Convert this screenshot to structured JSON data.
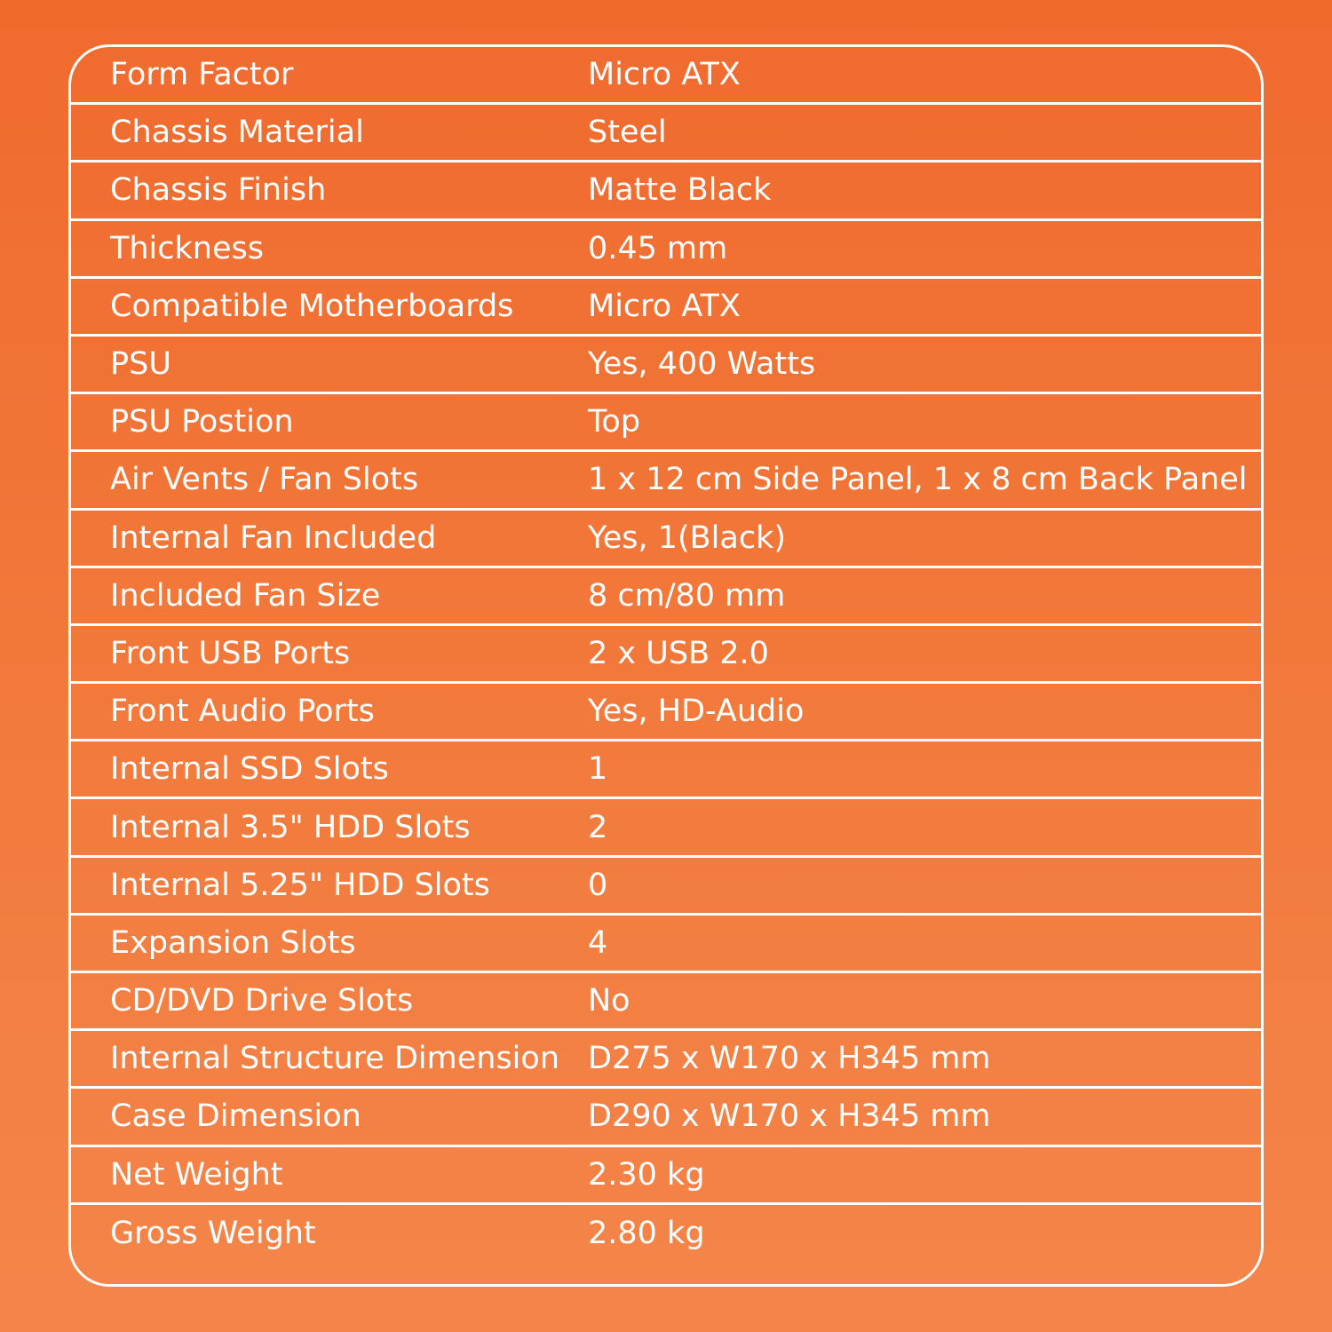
{
  "specs": [
    {
      "label": "Form Factor",
      "value": "Micro ATX"
    },
    {
      "label": "Chassis Material",
      "value": "Steel"
    },
    {
      "label": "Chassis Finish",
      "value": "Matte Black"
    },
    {
      "label": "Thickness",
      "value": "0.45 mm"
    },
    {
      "label": "Compatible Motherboards",
      "value": "Micro ATX"
    },
    {
      "label": "PSU",
      "value": "Yes, 400 Watts"
    },
    {
      "label": "PSU Postion",
      "value": "Top"
    },
    {
      "label": "Air Vents / Fan Slots",
      "value": "1 x 12 cm Side Panel, 1 x 8 cm Back Panel"
    },
    {
      "label": "Internal Fan Included",
      "value": "Yes, 1(Black)"
    },
    {
      "label": "Included Fan Size",
      "value": "8 cm/80 mm"
    },
    {
      "label": "Front USB Ports",
      "value": "2 x USB 2.0"
    },
    {
      "label": "Front Audio Ports",
      "value": "Yes, HD-Audio"
    },
    {
      "label": "Internal SSD Slots",
      "value": "1"
    },
    {
      "label": "Internal 3.5\" HDD Slots",
      "value": "2"
    },
    {
      "label": "Internal 5.25\" HDD Slots",
      "value": "0"
    },
    {
      "label": "Expansion Slots",
      "value": "4"
    },
    {
      "label": "CD/DVD Drive Slots",
      "value": "No"
    },
    {
      "label": "Internal Structure Dimension",
      "value": "D275 x W170 x H345 mm"
    },
    {
      "label": "Case Dimension",
      "value": "D290 x W170 x H345 mm"
    },
    {
      "label": "Net Weight",
      "value": "2.30 kg"
    },
    {
      "label": "Gross Weight",
      "value": "2.80 kg"
    }
  ],
  "colors": {
    "background_top": "#f06a2e",
    "background_bottom": "#f4854a",
    "text": "#ffffff",
    "border": "#ffffff"
  }
}
